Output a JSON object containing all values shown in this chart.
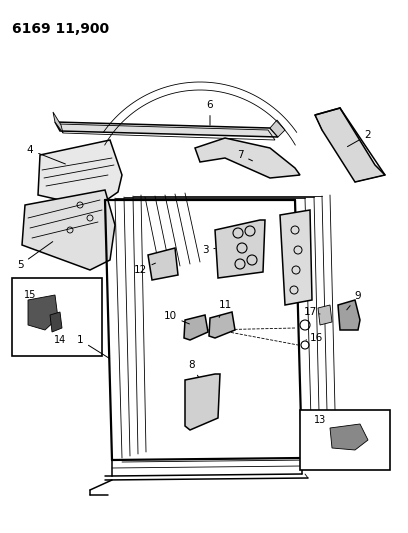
{
  "title": "6169 11,900",
  "bg": "#ffffff",
  "lw_main": 1.1,
  "lw_thin": 0.6,
  "lw_thick": 1.6,
  "col": "#000000"
}
